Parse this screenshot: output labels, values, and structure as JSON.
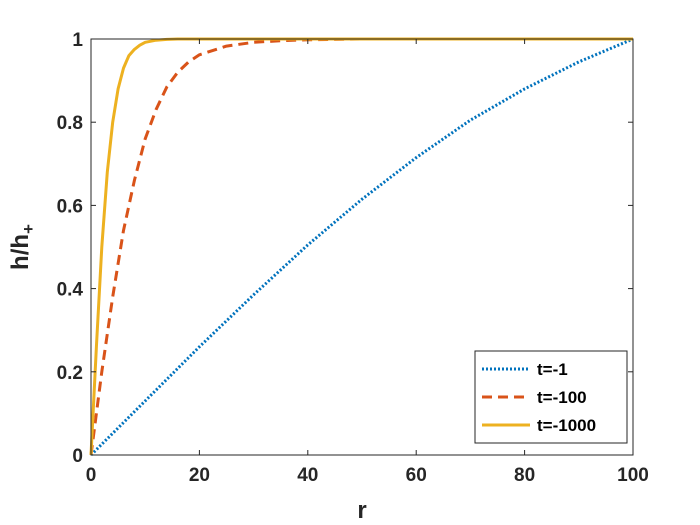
{
  "chart_data": {
    "type": "line",
    "xlabel": "r",
    "ylabel": {
      "main": "h/h",
      "subscript": "+"
    },
    "xlim": [
      0,
      100
    ],
    "ylim": [
      0,
      1
    ],
    "xticks": [
      0,
      20,
      40,
      60,
      80,
      100
    ],
    "yticks": [
      0,
      0.2,
      0.4,
      0.6,
      0.8,
      1
    ],
    "xtick_labels": [
      "0",
      "20",
      "40",
      "60",
      "80",
      "100"
    ],
    "ytick_labels": [
      "0",
      "0.2",
      "0.4",
      "0.6",
      "0.8",
      "1"
    ],
    "grid": false,
    "legend_position": "bottom-right",
    "series": [
      {
        "name": "t=-1",
        "color": "#0072BD",
        "style": "dotted",
        "x": [
          0,
          10,
          20,
          30,
          40,
          50,
          60,
          70,
          80,
          90,
          100
        ],
        "y": [
          0,
          0.13,
          0.26,
          0.385,
          0.505,
          0.615,
          0.715,
          0.805,
          0.88,
          0.945,
          1.0
        ]
      },
      {
        "name": "t=-100",
        "color": "#D95319",
        "style": "dashed",
        "x": [
          0,
          2,
          4,
          6,
          8,
          10,
          12,
          14,
          16,
          18,
          20,
          25,
          30,
          35,
          40,
          50,
          60,
          70,
          80,
          90,
          100
        ],
        "y": [
          0,
          0.2,
          0.38,
          0.54,
          0.66,
          0.76,
          0.83,
          0.885,
          0.92,
          0.945,
          0.962,
          0.983,
          0.992,
          0.996,
          0.998,
          1.0,
          1.0,
          1.0,
          1.0,
          1.0,
          1.0
        ]
      },
      {
        "name": "t=-1000",
        "color": "#EDB120",
        "style": "solid",
        "x": [
          0,
          1,
          2,
          3,
          4,
          5,
          6,
          7,
          8,
          9,
          10,
          12,
          14,
          16,
          18,
          20,
          30,
          40,
          60,
          80,
          100
        ],
        "y": [
          0,
          0.26,
          0.5,
          0.68,
          0.8,
          0.88,
          0.93,
          0.96,
          0.975,
          0.985,
          0.992,
          0.997,
          0.999,
          1.0,
          1.0,
          1.0,
          1.0,
          1.0,
          1.0,
          1.0,
          1.0
        ]
      }
    ]
  }
}
